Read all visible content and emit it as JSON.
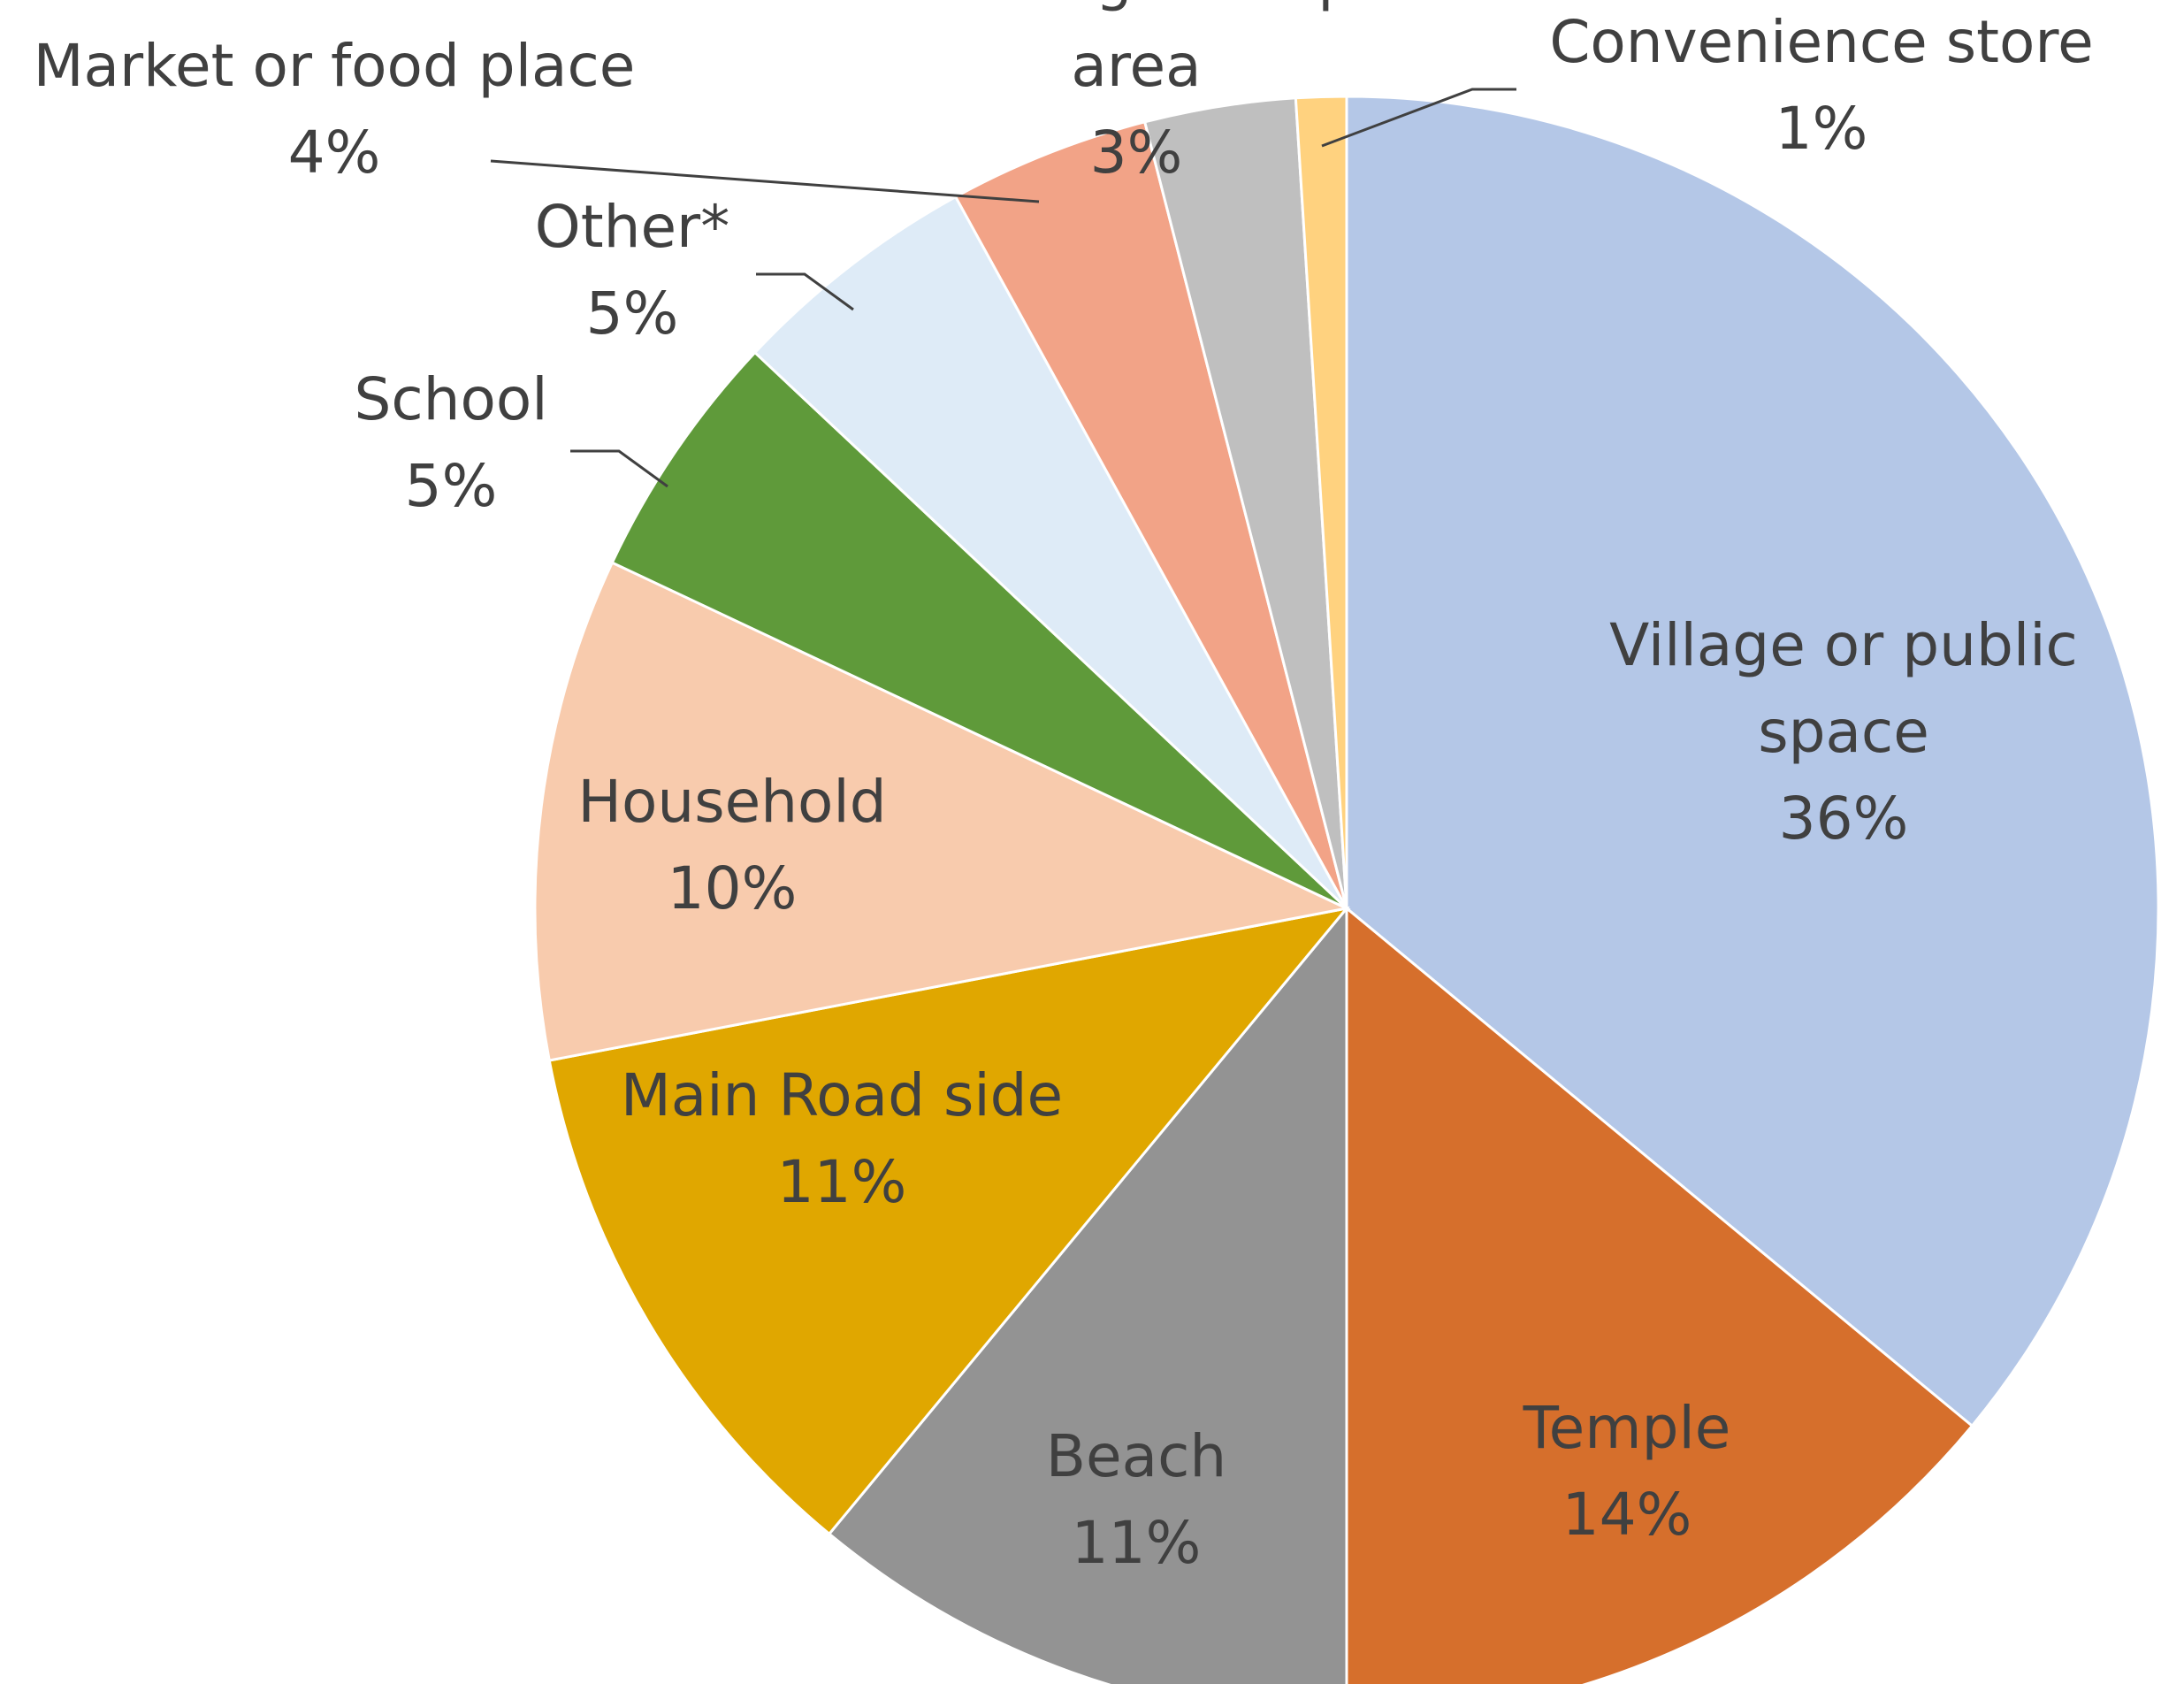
{
  "chart_data": {
    "type": "pie",
    "title": "",
    "start_angle_deg": 0,
    "direction": "clockwise",
    "slices": [
      {
        "label_lines": [
          "Village or public",
          "space"
        ],
        "label": "Village or public space",
        "value": 36,
        "value_label": "36%",
        "color": "#B4C7E7"
      },
      {
        "label_lines": [
          "Temple"
        ],
        "label": "Temple",
        "value": 14,
        "value_label": "14%",
        "color": "#D66F2C"
      },
      {
        "label_lines": [
          "Beach"
        ],
        "label": "Beach",
        "value": 11,
        "value_label": "11%",
        "color": "#939393"
      },
      {
        "label_lines": [
          "Main Road side"
        ],
        "label": "Main Road side",
        "value": 11,
        "value_label": "11%",
        "color": "#E0A700"
      },
      {
        "label_lines": [
          "Household"
        ],
        "label": "Household",
        "value": 10,
        "value_label": "10%",
        "color": "#F8CBAD"
      },
      {
        "label_lines": [
          "School"
        ],
        "label": "School",
        "value": 5,
        "value_label": "5%",
        "color": "#5F9A3A"
      },
      {
        "label_lines": [
          "Other*"
        ],
        "label": "Other*",
        "value": 5,
        "value_label": "5%",
        "color": "#DEEBF7"
      },
      {
        "label_lines": [
          "Market or food place"
        ],
        "label": "Market or food place",
        "value": 4,
        "value_label": "4%",
        "color": "#F2A387"
      },
      {
        "label_lines": [
          "Garbage dump",
          "area"
        ],
        "label": "Garbage dump area",
        "value": 3,
        "value_label": "3%",
        "color": "#BFBFBF"
      },
      {
        "label_lines": [
          "Convenience store"
        ],
        "label": "Convenience store",
        "value": 1,
        "value_label": "1%",
        "color": "#FFD27F"
      }
    ]
  }
}
